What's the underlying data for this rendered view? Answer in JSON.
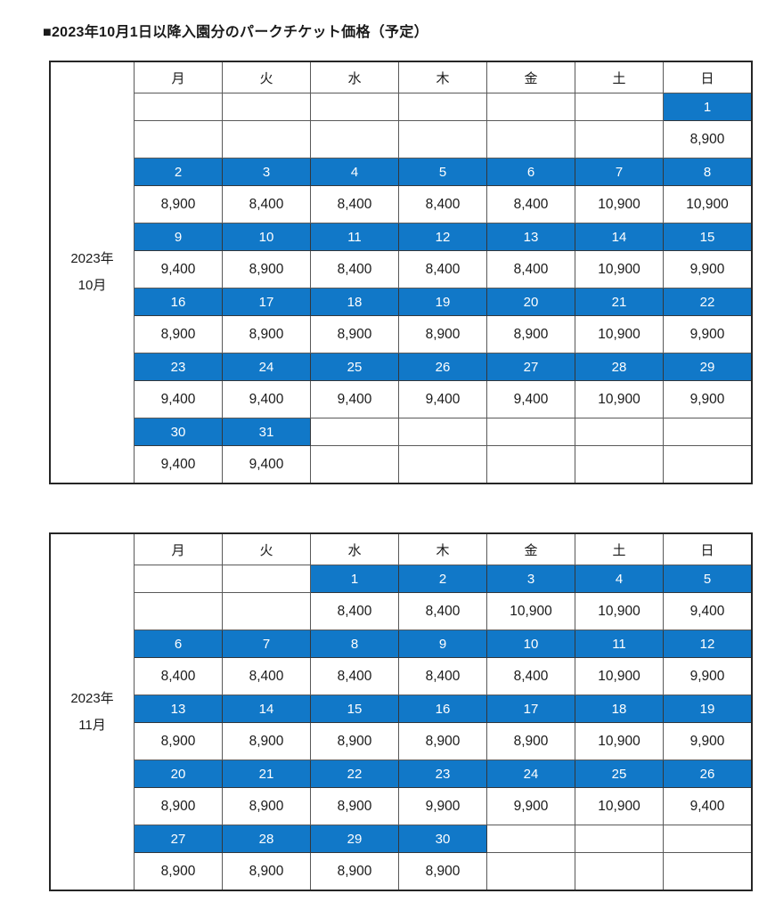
{
  "title": "■2023年10月1日以降入園分のパークチケット価格（予定）",
  "colors": {
    "highlight_blue": "#1178C8",
    "date_text": "#FFFFFF",
    "grid_line": "#595959",
    "outer_border": "#262626",
    "body_text": "#1A1A1A"
  },
  "day_headers": [
    "月",
    "火",
    "水",
    "木",
    "金",
    "土",
    "日"
  ],
  "tables": [
    {
      "month_label": [
        "2023年",
        "10月"
      ],
      "weeks": [
        {
          "dates": [
            "",
            "",
            "",
            "",
            "",
            "",
            "1"
          ],
          "prices": [
            "",
            "",
            "",
            "",
            "",
            "",
            "8,900"
          ]
        },
        {
          "dates": [
            "2",
            "3",
            "4",
            "5",
            "6",
            "7",
            "8"
          ],
          "prices": [
            "8,900",
            "8,400",
            "8,400",
            "8,400",
            "8,400",
            "10,900",
            "10,900"
          ]
        },
        {
          "dates": [
            "9",
            "10",
            "11",
            "12",
            "13",
            "14",
            "15"
          ],
          "prices": [
            "9,400",
            "8,900",
            "8,400",
            "8,400",
            "8,400",
            "10,900",
            "9,900"
          ]
        },
        {
          "dates": [
            "16",
            "17",
            "18",
            "19",
            "20",
            "21",
            "22"
          ],
          "prices": [
            "8,900",
            "8,900",
            "8,900",
            "8,900",
            "8,900",
            "10,900",
            "9,900"
          ]
        },
        {
          "dates": [
            "23",
            "24",
            "25",
            "26",
            "27",
            "28",
            "29"
          ],
          "prices": [
            "9,400",
            "9,400",
            "9,400",
            "9,400",
            "9,400",
            "10,900",
            "9,900"
          ]
        },
        {
          "dates": [
            "30",
            "31",
            "",
            "",
            "",
            "",
            ""
          ],
          "prices": [
            "9,400",
            "9,400",
            "",
            "",
            "",
            "",
            ""
          ]
        }
      ]
    },
    {
      "month_label": [
        "2023年",
        "11月"
      ],
      "weeks": [
        {
          "dates": [
            "",
            "",
            "1",
            "2",
            "3",
            "4",
            "5"
          ],
          "prices": [
            "",
            "",
            "8,400",
            "8,400",
            "10,900",
            "10,900",
            "9,400"
          ]
        },
        {
          "dates": [
            "6",
            "7",
            "8",
            "9",
            "10",
            "11",
            "12"
          ],
          "prices": [
            "8,400",
            "8,400",
            "8,400",
            "8,400",
            "8,400",
            "10,900",
            "9,900"
          ]
        },
        {
          "dates": [
            "13",
            "14",
            "15",
            "16",
            "17",
            "18",
            "19"
          ],
          "prices": [
            "8,900",
            "8,900",
            "8,900",
            "8,900",
            "8,900",
            "10,900",
            "9,900"
          ]
        },
        {
          "dates": [
            "20",
            "21",
            "22",
            "23",
            "24",
            "25",
            "26"
          ],
          "prices": [
            "8,900",
            "8,900",
            "8,900",
            "9,900",
            "9,900",
            "10,900",
            "9,400"
          ]
        },
        {
          "dates": [
            "27",
            "28",
            "29",
            "30",
            "",
            "",
            ""
          ],
          "prices": [
            "8,900",
            "8,900",
            "8,900",
            "8,900",
            "",
            "",
            ""
          ]
        }
      ]
    }
  ]
}
